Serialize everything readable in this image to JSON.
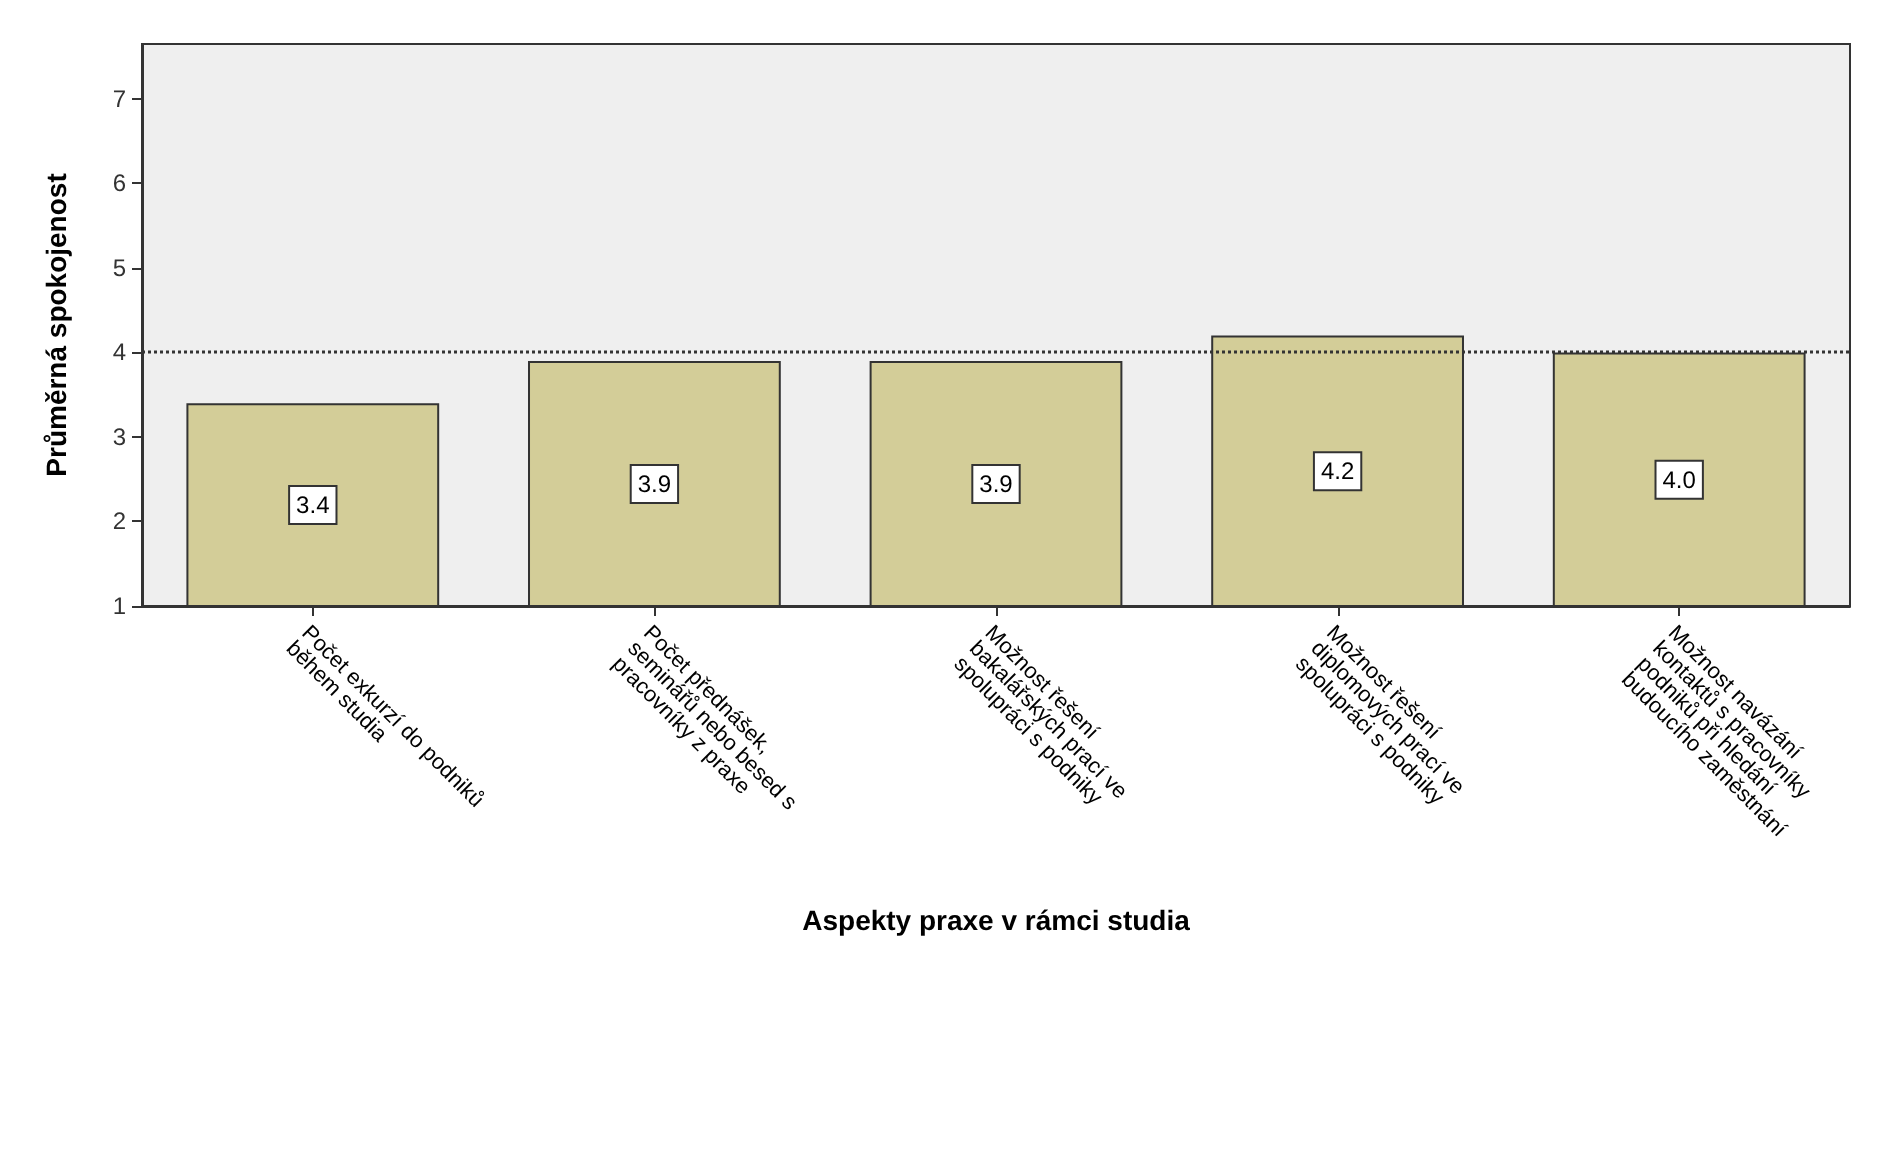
{
  "chart_data": {
    "type": "bar",
    "xlabel": "Aspekty praxe v rámci studia",
    "ylabel": "Průměrná spokojenost",
    "categories": [
      "Počet exkurzí do podniků během studia",
      "Počet přednášek, seminářů nebo besed s pracovníky z praxe",
      "Možnost řešení bakalářských prací ve spolupráci s podniky",
      "Možnost řešení diplomových prací ve spolupráci s podniky",
      "Možnost navázání kontaktů s pracovníky podniků při hledání budoucího zaměstnání"
    ],
    "values": [
      3.4,
      3.9,
      3.9,
      4.2,
      4.0
    ],
    "value_labels": [
      "3.4",
      "3.9",
      "3.9",
      "4.2",
      "4.0"
    ],
    "color": "#d3cd98",
    "data_labels": true,
    "ylim": [
      1,
      7.65
    ],
    "yticks": [
      1,
      2,
      3,
      4,
      5,
      6,
      7
    ],
    "grid": false,
    "ref_lines": [
      {
        "axis": "y",
        "value": 4,
        "line_style": "dotted",
        "color": "#333333"
      }
    ]
  }
}
